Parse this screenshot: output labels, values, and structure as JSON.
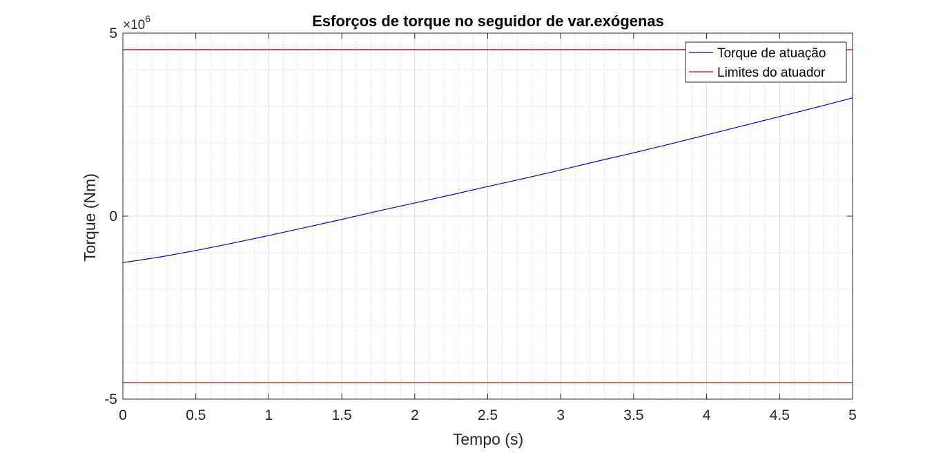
{
  "chart_data": {
    "type": "line",
    "title": "Esforços de torque no seguidor de var.exógenas",
    "xlabel": "Tempo (s)",
    "ylabel": "Torque (Nm)",
    "xlim": [
      0,
      5
    ],
    "ylim": [
      -5,
      5
    ],
    "y_multiplier_base": "×10",
    "y_multiplier_exp": "6",
    "x_ticks": [
      0,
      0.5,
      1,
      1.5,
      2,
      2.5,
      3,
      3.5,
      4,
      4.5,
      5
    ],
    "x_tick_labels": [
      "0",
      "0.5",
      "1",
      "1.5",
      "2",
      "2.5",
      "3",
      "3.5",
      "4",
      "4.5",
      "5"
    ],
    "y_ticks": [
      -5,
      0,
      5
    ],
    "y_tick_labels": [
      "-5",
      "0",
      "5"
    ],
    "grid": true,
    "minor_grid": true,
    "legend_position": "top-right",
    "series": [
      {
        "name": "Torque de atuação",
        "color": "#0000cd",
        "x": [
          0,
          0.25,
          0.5,
          0.75,
          1,
          1.25,
          1.5,
          1.75,
          2,
          2.25,
          2.5,
          2.75,
          3,
          3.25,
          3.5,
          3.75,
          4,
          4.25,
          4.5,
          4.75,
          5
        ],
        "y": [
          -1.27,
          -1.12,
          -0.94,
          -0.74,
          -0.53,
          -0.31,
          -0.09,
          0.14,
          0.36,
          0.58,
          0.81,
          1.03,
          1.26,
          1.5,
          1.73,
          1.97,
          2.22,
          2.47,
          2.72,
          2.97,
          3.23
        ]
      },
      {
        "name": "Limites do atuador",
        "color": "#cc0000",
        "segments": [
          {
            "x": [
              0,
              5
            ],
            "y": [
              4.55,
              4.55
            ]
          },
          {
            "x": [
              0,
              5
            ],
            "y": [
              -4.55,
              -4.55
            ]
          }
        ]
      }
    ]
  }
}
